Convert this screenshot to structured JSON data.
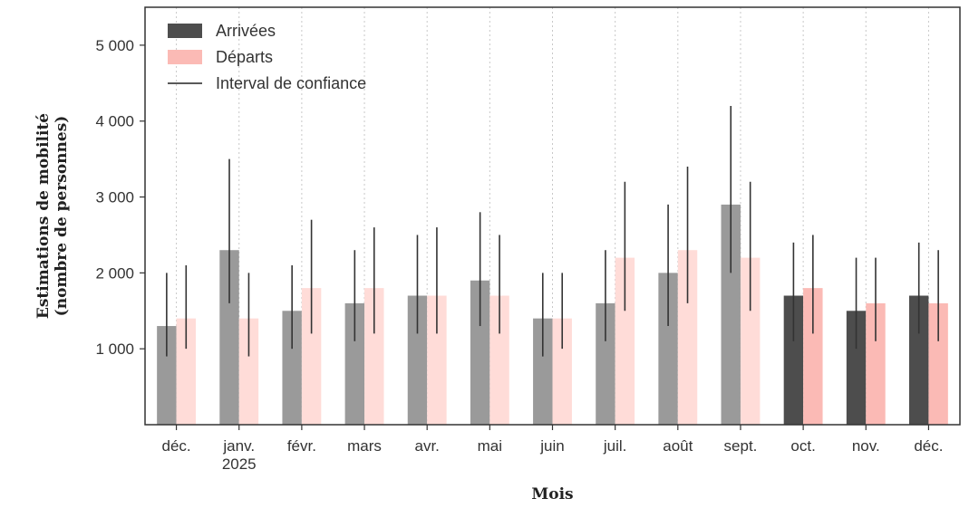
{
  "chart_data": {
    "type": "bar",
    "xlabel": "Mois",
    "ylabel": [
      "Estimations de mobilité",
      "(nombre de personnes)"
    ],
    "ylim": [
      0,
      5500
    ],
    "yticks": [
      1000,
      2000,
      3000,
      4000,
      5000
    ],
    "ytick_labels": [
      "1 000",
      "2 000",
      "3 000",
      "4 000",
      "5 000"
    ],
    "grid": "vertical dotted",
    "legend_position": "top-left",
    "categories": [
      [
        "déc."
      ],
      [
        "janv.",
        "2025"
      ],
      [
        "févr."
      ],
      [
        "mars"
      ],
      [
        "avr."
      ],
      [
        "mai"
      ],
      [
        "juin"
      ],
      [
        "juil."
      ],
      [
        "août"
      ],
      [
        "sept."
      ],
      [
        "oct."
      ],
      [
        "nov."
      ],
      [
        "déc."
      ]
    ],
    "highlighted_from_index": 10,
    "series": [
      {
        "name": "Arrivées",
        "color": "#4d4d4d",
        "faded_color": "#9a9a9a",
        "values": [
          1300,
          2300,
          1500,
          1600,
          1700,
          1900,
          1400,
          1600,
          2000,
          2900,
          1700,
          1500,
          1700
        ],
        "ci_low": [
          900,
          1600,
          1000,
          1100,
          1200,
          1300,
          900,
          1100,
          1300,
          2000,
          1100,
          1000,
          1200
        ],
        "ci_high": [
          2000,
          3500,
          2100,
          2300,
          2500,
          2800,
          2000,
          2300,
          2900,
          4200,
          2400,
          2200,
          2400
        ]
      },
      {
        "name": "Départs",
        "color": "#fbbab5",
        "faded_color": "#ffdcd8",
        "values": [
          1400,
          1400,
          1800,
          1800,
          1700,
          1700,
          1400,
          2200,
          2300,
          2200,
          1800,
          1600,
          1600
        ],
        "ci_low": [
          1000,
          900,
          1200,
          1200,
          1200,
          1200,
          1000,
          1500,
          1600,
          1500,
          1200,
          1100,
          1100
        ],
        "ci_high": [
          2100,
          2000,
          2700,
          2600,
          2600,
          2500,
          2000,
          3200,
          3400,
          3200,
          2500,
          2200,
          2300
        ]
      }
    ],
    "legend": [
      {
        "label": "Arrivées",
        "swatch": "bar",
        "color": "#4d4d4d"
      },
      {
        "label": "Départs",
        "swatch": "bar",
        "color": "#fbbab5"
      },
      {
        "label": "Interval de confiance",
        "swatch": "line",
        "color": "#222222"
      }
    ]
  }
}
